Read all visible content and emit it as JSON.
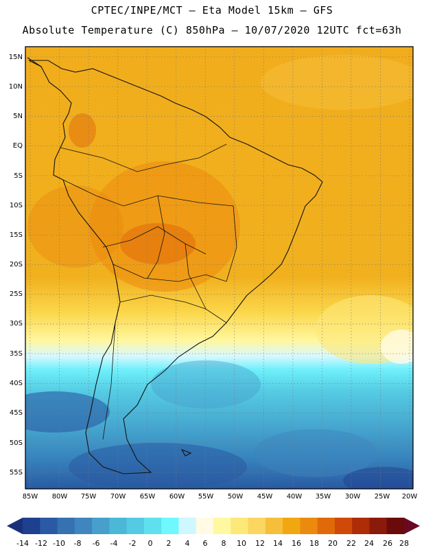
{
  "header": {
    "line1": "CPTEC/INPE/MCT –  Eta Model 15km – GFS",
    "line2": "Absolute Temperature (C) 850hPa – 10/07/2020 12UTC fct=63h"
  },
  "map": {
    "lat_labels": [
      "15N",
      "10N",
      "5N",
      "EQ",
      "5S",
      "10S",
      "15S",
      "20S",
      "25S",
      "30S",
      "35S",
      "40S",
      "45S",
      "50S",
      "55S"
    ],
    "lon_labels": [
      "85W",
      "80W",
      "75W",
      "70W",
      "65W",
      "60W",
      "55W",
      "50W",
      "45W",
      "40W",
      "35W",
      "30W",
      "25W",
      "20W"
    ]
  },
  "colorbar": {
    "ticks": [
      "-14",
      "-12",
      "-10",
      "-8",
      "-6",
      "-4",
      "-2",
      "0",
      "2",
      "4",
      "6",
      "8",
      "10",
      "12",
      "14",
      "16",
      "18",
      "20",
      "22",
      "24",
      "26",
      "28"
    ],
    "colors": [
      "#1f3f8f",
      "#2a5aa3",
      "#3671b2",
      "#3f86bf",
      "#46a0cb",
      "#4cb8d7",
      "#55cbe3",
      "#5fe0ef",
      "#6ff8ff",
      "#cff7ff",
      "#fffbe5",
      "#fff8a0",
      "#fde87a",
      "#fbd660",
      "#f5bf3c",
      "#f1a810",
      "#ec8a0f",
      "#e06a09",
      "#cf4a08",
      "#ae2c08",
      "#8a1a0a",
      "#6a0a0a"
    ],
    "left_color": "#1a2f7a",
    "right_color": "#6a0a22"
  }
}
